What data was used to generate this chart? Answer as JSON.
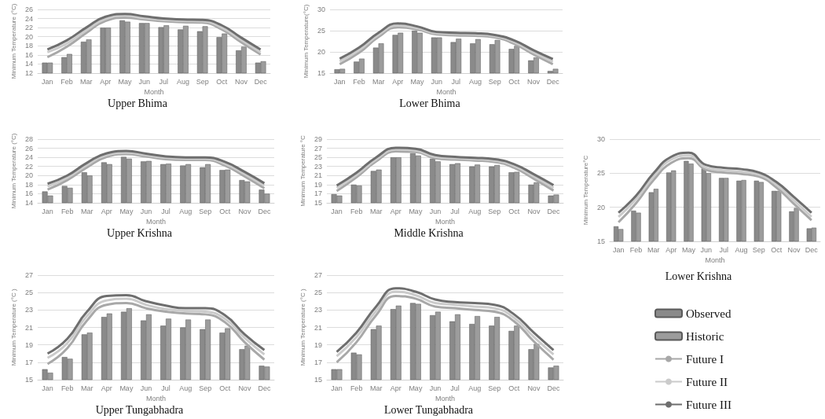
{
  "chart_data": [
    {
      "type": "bar",
      "title": "Upper Bhima",
      "xlabel": "Month",
      "ylabel": "Minimum Temperature (°C)",
      "categories": [
        "Jan",
        "Feb",
        "Mar",
        "Apr",
        "May",
        "Jun",
        "Jul",
        "Aug",
        "Sep",
        "Oct",
        "Nov",
        "Dec"
      ],
      "ylim": [
        12,
        26
      ],
      "yticks": [
        12,
        14,
        16,
        18,
        20,
        22,
        24,
        26
      ],
      "grid": "y",
      "legend": false,
      "marker": "none",
      "series": [
        {
          "color": "#8a8a8a",
          "values": [
            14.3,
            15.5,
            18.9,
            22,
            23.6,
            23,
            22.1,
            21.6,
            21.2,
            19.9,
            17,
            14.3
          ]
        },
        {
          "color": "#9c9c9c",
          "values": [
            14.3,
            16.2,
            19.4,
            22,
            23.3,
            23,
            22.5,
            22.4,
            22.3,
            20.7,
            17.8,
            14.6
          ]
        },
        {
          "type": "line",
          "color": "#a8a8a8",
          "values": [
            15.5,
            17.8,
            20.8,
            23.5,
            24.2,
            23.8,
            23.4,
            23.2,
            23.1,
            21.6,
            18.8,
            16.1
          ]
        },
        {
          "type": "line",
          "color": "#cbcbcb",
          "values": [
            16.6,
            18.5,
            21.4,
            23.9,
            24.6,
            24.1,
            23.7,
            23.5,
            23.4,
            22,
            19.3,
            16.6
          ]
        },
        {
          "type": "line",
          "color": "#6e6e6e",
          "values": [
            17.2,
            19.2,
            22,
            24.4,
            25,
            24.5,
            24,
            23.8,
            23.7,
            22.5,
            19.8,
            17.2
          ]
        }
      ]
    },
    {
      "type": "bar",
      "title": "Lower Bhima",
      "xlabel": "Month",
      "ylabel": "Minimum Temperature(°C)",
      "categories": [
        "Jan",
        "Feb",
        "Mar",
        "Apr",
        "May",
        "Jun",
        "Jul",
        "Aug",
        "Sep",
        "Oct",
        "Nov",
        "Dec"
      ],
      "ylim": [
        15,
        30
      ],
      "yticks": [
        15,
        20,
        25,
        30
      ],
      "grid": "y",
      "legend": false,
      "marker": "none",
      "series": [
        {
          "color": "#8a8a8a",
          "values": [
            15.9,
            17.7,
            21,
            24,
            25,
            23.4,
            22.3,
            22,
            21.8,
            20.7,
            18,
            15.5
          ]
        },
        {
          "color": "#9c9c9c",
          "values": [
            16,
            18.4,
            22,
            24.5,
            24.5,
            23.4,
            23.1,
            23,
            22.8,
            21.4,
            18.7,
            16
          ]
        },
        {
          "type": "line",
          "color": "#a8a8a8",
          "values": [
            17.1,
            19.8,
            23.5,
            25.8,
            25.3,
            24.1,
            23.9,
            23.8,
            23.4,
            21.9,
            19.4,
            17.1
          ]
        },
        {
          "type": "line",
          "color": "#cbcbcb",
          "values": [
            17.8,
            20.4,
            24,
            26.2,
            25.6,
            24.4,
            24.2,
            24.1,
            23.7,
            22.3,
            19.9,
            17.7
          ]
        },
        {
          "type": "line",
          "color": "#6e6e6e",
          "values": [
            18.4,
            21,
            24.5,
            26.7,
            26,
            24.7,
            24.5,
            24.4,
            24,
            22.7,
            20.4,
            18.3
          ]
        }
      ]
    },
    {
      "type": "bar",
      "title": "Upper Krishna",
      "xlabel": "Month",
      "ylabel": "Minimum Temperature (°C)",
      "categories": [
        "Jan",
        "Feb",
        "Mar",
        "Apr",
        "May",
        "Jun",
        "Jul",
        "Aug",
        "Sep",
        "Oct",
        "Nov",
        "Dec"
      ],
      "ylim": [
        14,
        28
      ],
      "yticks": [
        14,
        16,
        18,
        20,
        22,
        24,
        26,
        28
      ],
      "grid": "y",
      "legend": false,
      "marker": "none",
      "series": [
        {
          "color": "#8a8a8a",
          "values": [
            16.5,
            17.7,
            20.7,
            22.9,
            24.1,
            23.1,
            22.5,
            22.2,
            21.8,
            21.2,
            19,
            16.9
          ]
        },
        {
          "color": "#9c9c9c",
          "values": [
            15.6,
            17.3,
            20,
            22.5,
            23.7,
            23.2,
            22.6,
            22.5,
            22.5,
            21.3,
            18.7,
            16
          ]
        },
        {
          "type": "line",
          "color": "#a8a8a8",
          "values": [
            16.9,
            19,
            21.8,
            24.1,
            24.7,
            24.2,
            23.6,
            23.4,
            23.4,
            22.2,
            19.8,
            17.2
          ]
        },
        {
          "type": "line",
          "color": "#cbcbcb",
          "values": [
            17.6,
            19.5,
            22.3,
            24.5,
            25,
            24.5,
            23.9,
            23.7,
            23.7,
            22.6,
            20.3,
            17.8
          ]
        },
        {
          "type": "line",
          "color": "#6e6e6e",
          "values": [
            18.2,
            20,
            22.8,
            24.9,
            25.4,
            24.8,
            24.2,
            24,
            24,
            23,
            20.8,
            18.3
          ]
        }
      ]
    },
    {
      "type": "bar",
      "title": "Middle Krishna",
      "xlabel": "Month",
      "ylabel": "Minimum Temperature °C",
      "categories": [
        "Jan",
        "Feb",
        "Mar",
        "Apr",
        "May",
        "Jun",
        "Jul",
        "Aug",
        "Sep",
        "Oct",
        "Nov",
        "Dec"
      ],
      "ylim": [
        15,
        29
      ],
      "yticks": [
        15,
        17,
        19,
        21,
        23,
        25,
        27,
        29
      ],
      "grid": "y",
      "legend": false,
      "marker": "none",
      "series": [
        {
          "color": "#8a8a8a",
          "values": [
            16.9,
            19,
            22,
            25,
            25.9,
            24.7,
            23.5,
            23,
            23,
            21.7,
            19,
            16.6
          ]
        },
        {
          "color": "#9c9c9c",
          "values": [
            16.6,
            18.8,
            22.3,
            25,
            25.4,
            24.1,
            23.7,
            23.4,
            23.3,
            21.8,
            19.5,
            16.8
          ]
        },
        {
          "type": "line",
          "color": "#a8a8a8",
          "values": [
            17.6,
            20.6,
            24.1,
            26.3,
            26.2,
            24.8,
            24.5,
            24.3,
            24,
            22.7,
            20.3,
            17.7
          ]
        },
        {
          "type": "line",
          "color": "#cbcbcb",
          "values": [
            18.3,
            21.1,
            24.5,
            26.7,
            26.5,
            25.1,
            24.8,
            24.6,
            24.3,
            23.1,
            20.8,
            18.3
          ]
        },
        {
          "type": "line",
          "color": "#6e6e6e",
          "values": [
            18.8,
            21.6,
            25,
            27.1,
            26.9,
            25.5,
            25.1,
            24.9,
            24.6,
            23.5,
            21.3,
            18.9
          ]
        }
      ]
    },
    {
      "type": "bar",
      "title": "Lower Krishna",
      "xlabel": "Month",
      "ylabel": "Minimum Temperature°C",
      "categories": [
        "Jan",
        "Feb",
        "Mar",
        "Apr",
        "May",
        "Jun",
        "Jul",
        "Aug",
        "Sep",
        "Oct",
        "Nov",
        "Dec"
      ],
      "ylim": [
        15,
        30
      ],
      "yticks": [
        15,
        20,
        25,
        30
      ],
      "grid": "y",
      "legend": "bottom",
      "marker": "none",
      "series": [
        {
          "name": "Observed",
          "color": "#8a8a8a",
          "values": [
            17.2,
            19.5,
            22.2,
            25.1,
            26.8,
            25.7,
            24.3,
            23.9,
            23.9,
            22.4,
            19.4,
            16.9
          ]
        },
        {
          "name": "Historic",
          "color": "#9c9c9c",
          "values": [
            16.8,
            19.2,
            22.7,
            25.4,
            26.4,
            25,
            24.3,
            24,
            23.7,
            22.4,
            19.9,
            17
          ]
        },
        {
          "name": "Future I",
          "type": "line",
          "color": "#a8a8a8",
          "values": [
            17.8,
            20.6,
            24,
            26.5,
            27.2,
            25.5,
            25.1,
            24.9,
            24.5,
            22.9,
            20.5,
            18.1
          ]
        },
        {
          "name": "Future II",
          "type": "line",
          "color": "#cbcbcb",
          "values": [
            18.6,
            21.2,
            24.5,
            27,
            27.6,
            25.8,
            25.4,
            25.2,
            24.8,
            23.3,
            21,
            18.6
          ]
        },
        {
          "name": "Future III",
          "type": "line",
          "color": "#6e6e6e",
          "values": [
            19.2,
            21.7,
            25,
            27.4,
            28,
            26.2,
            25.8,
            25.6,
            25.1,
            23.7,
            21.5,
            19.2
          ]
        }
      ]
    },
    {
      "type": "bar",
      "title": "Upper Tungabhadra",
      "xlabel": "Month",
      "ylabel": "Minimum Temperature (°C )",
      "categories": [
        "Jan",
        "Feb",
        "Mar",
        "Apr",
        "May",
        "Jun",
        "Jul",
        "Aug",
        "Sep",
        "Oct",
        "Nov",
        "Dec"
      ],
      "ylim": [
        15,
        27
      ],
      "yticks": [
        15,
        17,
        19,
        21,
        23,
        25,
        27
      ],
      "grid": "y",
      "legend": false,
      "marker": "none",
      "series": [
        {
          "color": "#8a8a8a",
          "values": [
            16.2,
            17.6,
            20.2,
            22.2,
            22.8,
            21.8,
            21.2,
            21,
            20.8,
            20.4,
            18.5,
            16.6
          ]
        },
        {
          "color": "#9c9c9c",
          "values": [
            15.8,
            17.4,
            20.4,
            22.6,
            23.2,
            22.5,
            22,
            21.9,
            21.9,
            20.9,
            18.9,
            16.5
          ]
        },
        {
          "type": "line",
          "color": "#a8a8a8",
          "values": [
            16.8,
            18.6,
            21.8,
            23.6,
            23.8,
            23.2,
            22.8,
            22.6,
            22.5,
            21.6,
            19.3,
            17.3
          ]
        },
        {
          "type": "line",
          "color": "#cbcbcb",
          "values": [
            17.5,
            19.2,
            22.3,
            24.1,
            24.3,
            23.6,
            23.1,
            22.9,
            22.8,
            22,
            19.8,
            17.9
          ]
        },
        {
          "type": "line",
          "color": "#6e6e6e",
          "values": [
            18,
            19.7,
            22.8,
            24.6,
            24.7,
            24,
            23.5,
            23.2,
            23.2,
            22.4,
            20.2,
            18.4
          ]
        }
      ]
    },
    {
      "type": "bar",
      "title": "Lower Tungabhadra",
      "xlabel": "Month",
      "ylabel": "Minimum Temperature (°C )",
      "categories": [
        "Jan",
        "Feb",
        "Mar",
        "Apr",
        "May",
        "Jun",
        "Jul",
        "Aug",
        "Sep",
        "Oct",
        "Nov",
        "Dec"
      ],
      "ylim": [
        15,
        27
      ],
      "yticks": [
        15,
        17,
        19,
        21,
        23,
        25,
        27
      ],
      "grid": "y",
      "legend": false,
      "marker": "none",
      "series": [
        {
          "color": "#8a8a8a",
          "values": [
            16.2,
            18.1,
            20.8,
            23.1,
            23.8,
            22.4,
            21.7,
            21.4,
            21.2,
            20.6,
            18.5,
            16.4
          ]
        },
        {
          "color": "#9c9c9c",
          "values": [
            16.2,
            17.9,
            21.2,
            23.5,
            23.7,
            22.8,
            22.5,
            22.3,
            22.2,
            21.2,
            19.1,
            16.6
          ]
        },
        {
          "type": "line",
          "color": "#a8a8a8",
          "values": [
            17,
            19.3,
            22.4,
            24.6,
            24.3,
            23.4,
            23.2,
            23,
            22.8,
            21.7,
            19.4,
            17.3
          ]
        },
        {
          "type": "line",
          "color": "#cbcbcb",
          "values": [
            17.7,
            19.9,
            22.9,
            25.1,
            24.7,
            23.8,
            23.6,
            23.4,
            23.2,
            22.1,
            19.9,
            17.9
          ]
        },
        {
          "type": "line",
          "color": "#6e6e6e",
          "values": [
            18.2,
            20.4,
            23.4,
            25.5,
            25.1,
            24.2,
            23.9,
            23.8,
            23.6,
            22.5,
            20.4,
            18.4
          ]
        }
      ]
    }
  ]
}
